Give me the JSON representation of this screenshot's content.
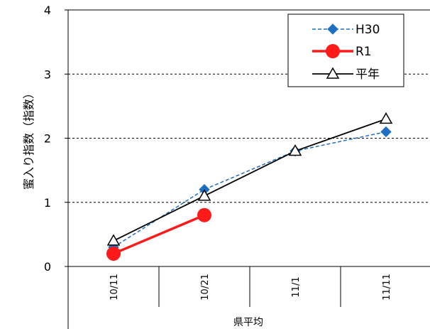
{
  "chart_data": {
    "type": "line",
    "categories": [
      "10/11",
      "10/21",
      "11/1",
      "11/11"
    ],
    "series": [
      {
        "name": "H30",
        "values": [
          0.3,
          1.2,
          1.8,
          2.1
        ],
        "color": "#1f6fc1",
        "style": "dashed",
        "marker": "diamond"
      },
      {
        "name": "R1",
        "values": [
          0.2,
          0.8,
          null,
          null
        ],
        "color": "#ff1a1a",
        "style": "solid",
        "marker": "circle"
      },
      {
        "name": "平年",
        "values": [
          0.4,
          1.1,
          1.8,
          2.3
        ],
        "color": "#000000",
        "style": "solid",
        "marker": "triangle"
      }
    ],
    "ylabel": "蜜入り指数（指数）",
    "xlabel": "県平均",
    "ylim": [
      0,
      4
    ],
    "yticks": [
      "0",
      "1",
      "2",
      "3",
      "4"
    ],
    "grid": "horizontal dashed",
    "legend_position": "top-right"
  }
}
